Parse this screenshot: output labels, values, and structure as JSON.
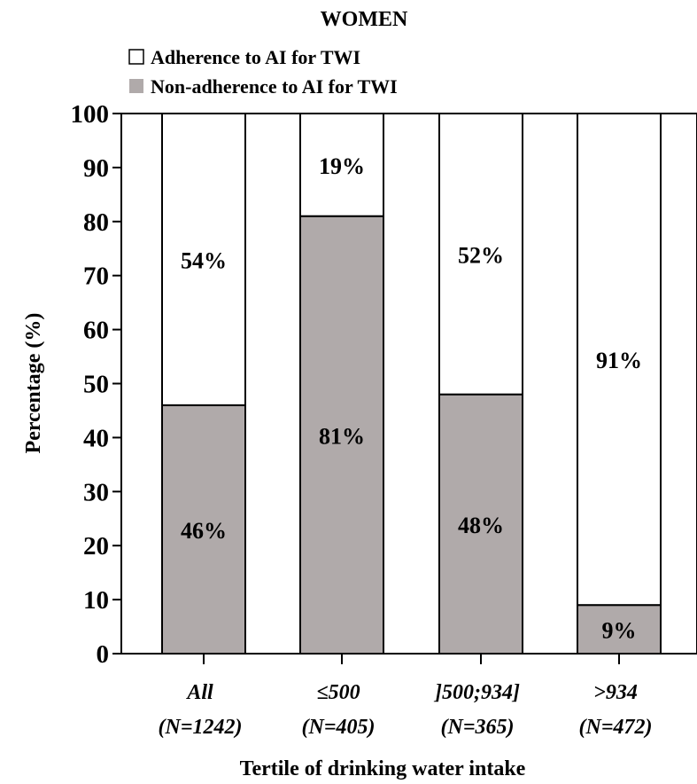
{
  "chart_data": {
    "type": "bar",
    "stacked": true,
    "title": "WOMEN",
    "xlabel": "Tertile of drinking water intake",
    "ylabel": "Percentage (%)",
    "ylim": [
      0,
      100
    ],
    "yticks": [
      "0",
      "10",
      "20",
      "30",
      "40",
      "50",
      "60",
      "70",
      "80",
      "90",
      "100"
    ],
    "grid": false,
    "legend_position": "top-left",
    "categories": [
      {
        "label": "All",
        "n": "(N=1242)"
      },
      {
        "label": "≤500",
        "n": "(N=405)"
      },
      {
        "label": "]500;934]",
        "n": "(N=365)"
      },
      {
        "label": ">934",
        "n": "(N=472)"
      }
    ],
    "series": [
      {
        "name": "Non-adherence to AI for TWI",
        "color": "#b0aaaa",
        "values": [
          46,
          81,
          48,
          9
        ],
        "labels": [
          "46%",
          "81%",
          "48%",
          "9%"
        ]
      },
      {
        "name": "Adherence to AI for TWI",
        "color": "#ffffff",
        "values": [
          54,
          19,
          52,
          91
        ],
        "labels": [
          "54%",
          "19%",
          "52%",
          "91%"
        ]
      }
    ]
  }
}
